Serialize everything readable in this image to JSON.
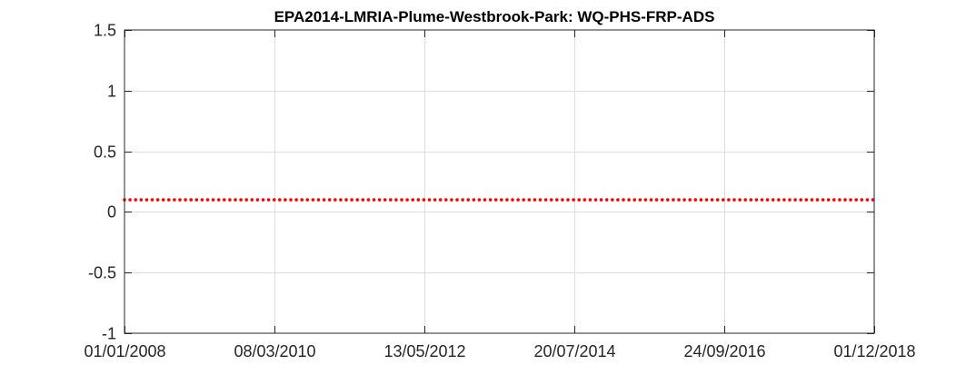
{
  "chart_data": {
    "type": "scatter",
    "title": "EPA2014-LMRIA-Plume-Westbrook-Park: WQ-PHS-FRP-ADS",
    "xlabel": "",
    "ylabel": "",
    "x_axis": {
      "type": "date",
      "range": [
        "01/01/2008",
        "01/12/2018"
      ],
      "ticks": [
        "01/01/2008",
        "08/03/2010",
        "13/05/2012",
        "20/07/2014",
        "24/09/2016",
        "01/12/2018"
      ]
    },
    "y_axis": {
      "range": [
        -1,
        1.5
      ],
      "ticks": [
        "1.5",
        "1",
        "0.5",
        "0",
        "-0.5",
        "-1"
      ]
    },
    "grid": true,
    "series": [
      {
        "color": "#ff0000",
        "marker": "dot",
        "x_start": "01/01/2008",
        "x_end": "01/12/2018",
        "y": 0.1,
        "description": "constant value series spanning the full date range"
      }
    ]
  }
}
